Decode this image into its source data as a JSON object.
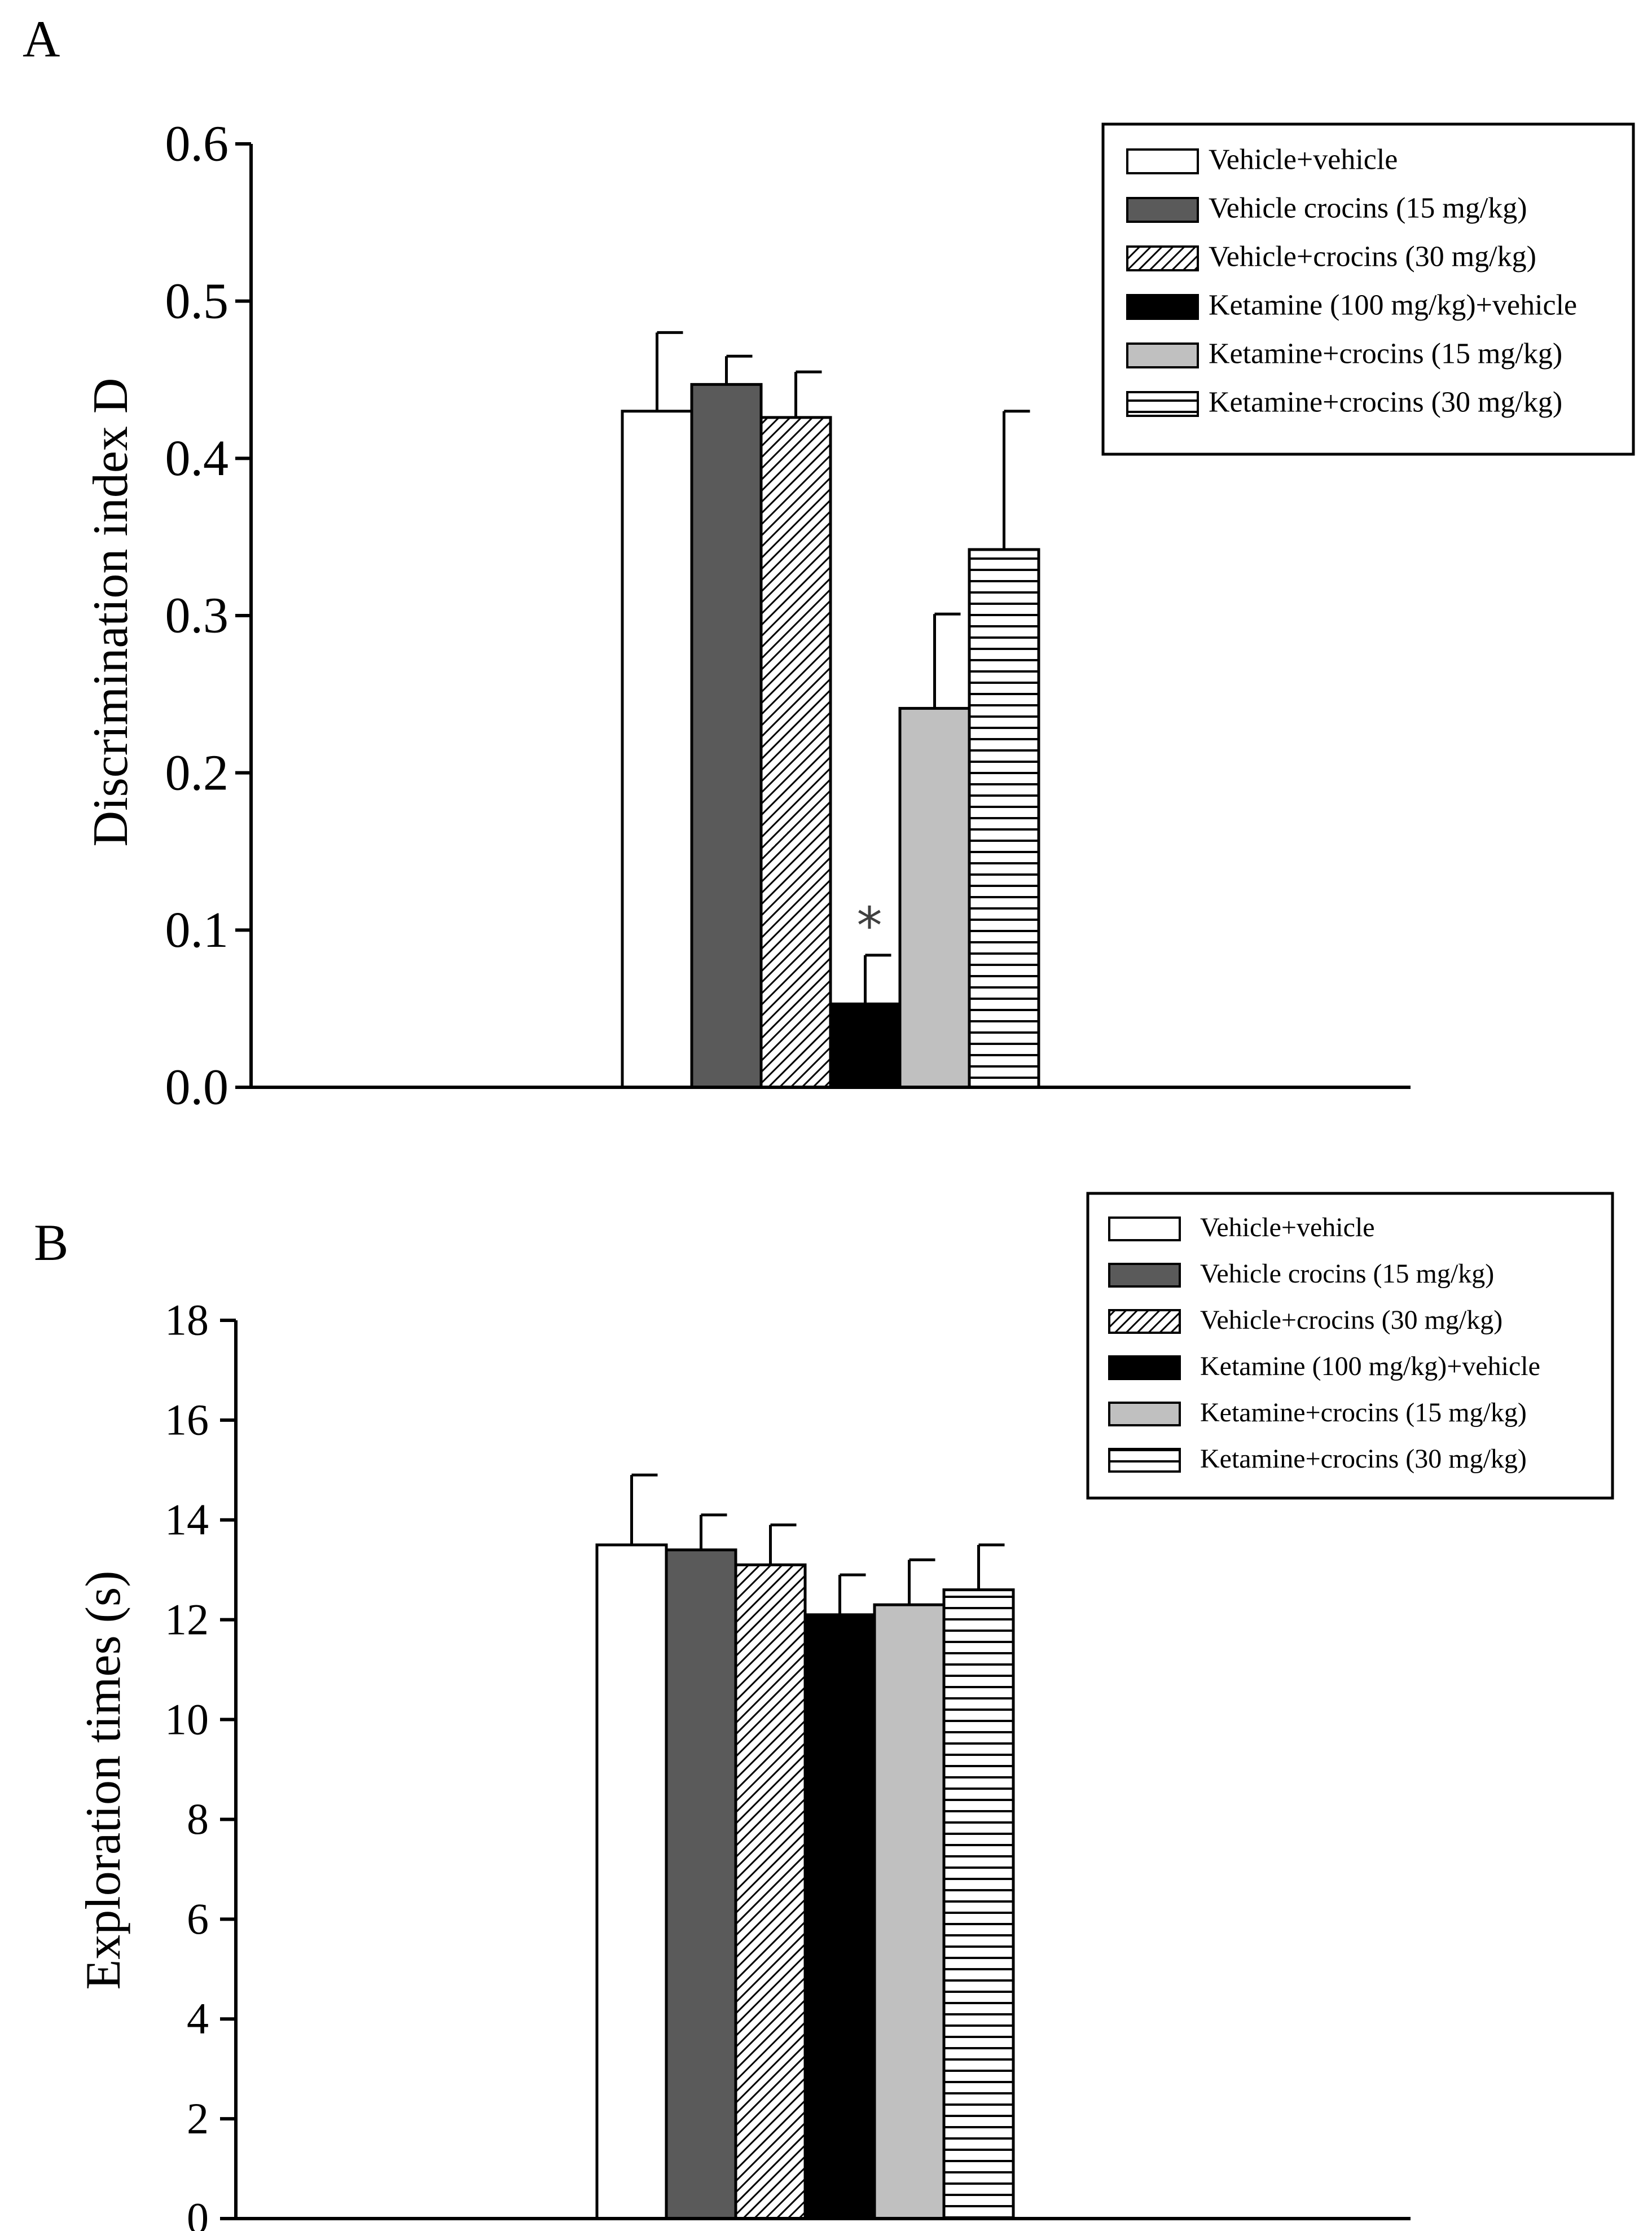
{
  "colors": {
    "vehicle_vehicle": "#ffffff",
    "vehicle_crocins15": "#5a5a5a",
    "vehicle_crocins30": "#ffffff",
    "ketamine_vehicle": "#000000",
    "ketamine_crocins15": "#c0c0c0",
    "ketamine_crocins30": "#ffffff"
  },
  "chart_data": [
    {
      "panel": "A",
      "type": "bar",
      "title": "",
      "xlabel": "",
      "ylabel": "Discrimination index D",
      "ylim": [
        0,
        0.6
      ],
      "yticks": [
        "0.0",
        "0.1",
        "0.2",
        "0.3",
        "0.4",
        "0.5",
        "0.6"
      ],
      "legend_position": "top-right",
      "series": [
        {
          "name": "Vehicle+vehicle",
          "value": 0.43,
          "error": 0.05,
          "fill": "white"
        },
        {
          "name": "Vehicle crocins (15 mg/kg)",
          "value": 0.447,
          "error": 0.018,
          "fill": "darkgray"
        },
        {
          "name": "Vehicle+crocins (30 mg/kg)",
          "value": 0.426,
          "error": 0.029,
          "fill": "diagonal"
        },
        {
          "name": "Ketamine (100 mg/kg)+vehicle",
          "value": 0.053,
          "error": 0.031,
          "fill": "black",
          "annotation": "*"
        },
        {
          "name": "Ketamine+crocins (15 mg/kg)",
          "value": 0.241,
          "error": 0.06,
          "fill": "lightgray"
        },
        {
          "name": "Ketamine+crocins (30 mg/kg)",
          "value": 0.342,
          "error": 0.088,
          "fill": "horizontal"
        }
      ]
    },
    {
      "panel": "B",
      "type": "bar",
      "title": "",
      "xlabel": "",
      "ylabel": "Exploration times (s)",
      "ylim": [
        0,
        18
      ],
      "yticks": [
        "0",
        "2",
        "4",
        "6",
        "8",
        "10",
        "12",
        "14",
        "16",
        "18"
      ],
      "legend_position": "top-right",
      "series": [
        {
          "name": "Vehicle+vehicle",
          "value": 13.5,
          "error": 1.4,
          "fill": "white"
        },
        {
          "name": "Vehicle crocins (15 mg/kg)",
          "value": 13.4,
          "error": 0.7,
          "fill": "darkgray"
        },
        {
          "name": "Vehicle+crocins (30 mg/kg)",
          "value": 13.1,
          "error": 0.8,
          "fill": "diagonal"
        },
        {
          "name": "Ketamine (100 mg/kg)+vehicle",
          "value": 12.1,
          "error": 0.8,
          "fill": "black"
        },
        {
          "name": "Ketamine+crocins (15 mg/kg)",
          "value": 12.3,
          "error": 0.9,
          "fill": "lightgray"
        },
        {
          "name": "Ketamine+crocins (30 mg/kg)",
          "value": 12.6,
          "error": 0.9,
          "fill": "horizontal"
        }
      ]
    }
  ]
}
